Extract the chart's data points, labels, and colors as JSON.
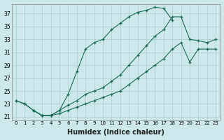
{
  "xlabel": "Humidex (Indice chaleur)",
  "bg_color": "#cce8ea",
  "grid_color": "#aacccc",
  "line_color": "#1a6b5a",
  "xlim": [
    -0.5,
    23.5
  ],
  "ylim": [
    20.5,
    38.5
  ],
  "yticks": [
    21,
    23,
    25,
    27,
    29,
    31,
    33,
    35,
    37
  ],
  "xticks": [
    0,
    1,
    2,
    3,
    4,
    5,
    6,
    7,
    8,
    9,
    10,
    11,
    12,
    13,
    14,
    15,
    16,
    17,
    18,
    19,
    20,
    21,
    22,
    23
  ],
  "line1_x": [
    0,
    1,
    2,
    3,
    4,
    5,
    6,
    7,
    8,
    9,
    10,
    11,
    12,
    13,
    14,
    15,
    16,
    17,
    18
  ],
  "line1_y": [
    23.5,
    23.0,
    22.0,
    21.2,
    21.2,
    22.0,
    24.5,
    28.0,
    31.5,
    32.5,
    33.0,
    34.5,
    35.5,
    36.5,
    37.2,
    37.5,
    38.0,
    37.8,
    36.0
  ],
  "line2_x": [
    0,
    1,
    2,
    3,
    4,
    5,
    6,
    7,
    8,
    9,
    10,
    11,
    12,
    13,
    14,
    15,
    16,
    17,
    18,
    19,
    20,
    21,
    22,
    23
  ],
  "line2_y": [
    23.5,
    23.0,
    22.0,
    21.2,
    21.2,
    22.0,
    22.8,
    23.5,
    24.5,
    25.0,
    25.5,
    26.5,
    27.5,
    29.0,
    30.5,
    32.0,
    33.5,
    34.5,
    36.5,
    36.5,
    33.0,
    32.8,
    32.5,
    33.0
  ],
  "line3_x": [
    2,
    3,
    4,
    5,
    6,
    7,
    8,
    9,
    10,
    11,
    12,
    13,
    14,
    15,
    16,
    17,
    18,
    19,
    20,
    21,
    22,
    23
  ],
  "line3_y": [
    22.0,
    21.2,
    21.2,
    21.5,
    22.0,
    22.5,
    23.0,
    23.5,
    24.0,
    24.5,
    25.0,
    26.0,
    27.0,
    28.0,
    29.0,
    30.0,
    31.5,
    32.5,
    29.5,
    31.5,
    31.5,
    31.5
  ]
}
